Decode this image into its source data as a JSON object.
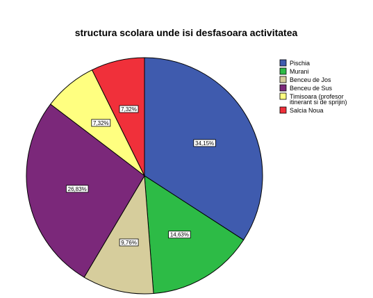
{
  "chart_data": {
    "type": "pie",
    "title": "structura scolara unde isi desfasoara activitatea",
    "slices": [
      {
        "label": "Pischia",
        "value": 34.15,
        "display": "34,15%",
        "color": "#3F5BAE"
      },
      {
        "label": "Murani",
        "value": 14.63,
        "display": "14,63%",
        "color": "#2DBB46"
      },
      {
        "label": "Benceu de Jos",
        "value": 9.76,
        "display": "9,76%",
        "color": "#D6CD9C"
      },
      {
        "label": "Benceu de Sus",
        "value": 26.83,
        "display": "26,83%",
        "color": "#7B287A"
      },
      {
        "label": "Timisoara (profesor itinerant si de sprijin)",
        "display": "7,32%",
        "value": 7.32,
        "color": "#FFFF80",
        "legend_lines": [
          "Timisoara (profesor",
          "itinerant si de sprijin)"
        ]
      },
      {
        "label": "Salcia Noua",
        "value": 7.32,
        "display": "7,32%",
        "color": "#F0303A"
      }
    ],
    "legend_position": "right"
  }
}
